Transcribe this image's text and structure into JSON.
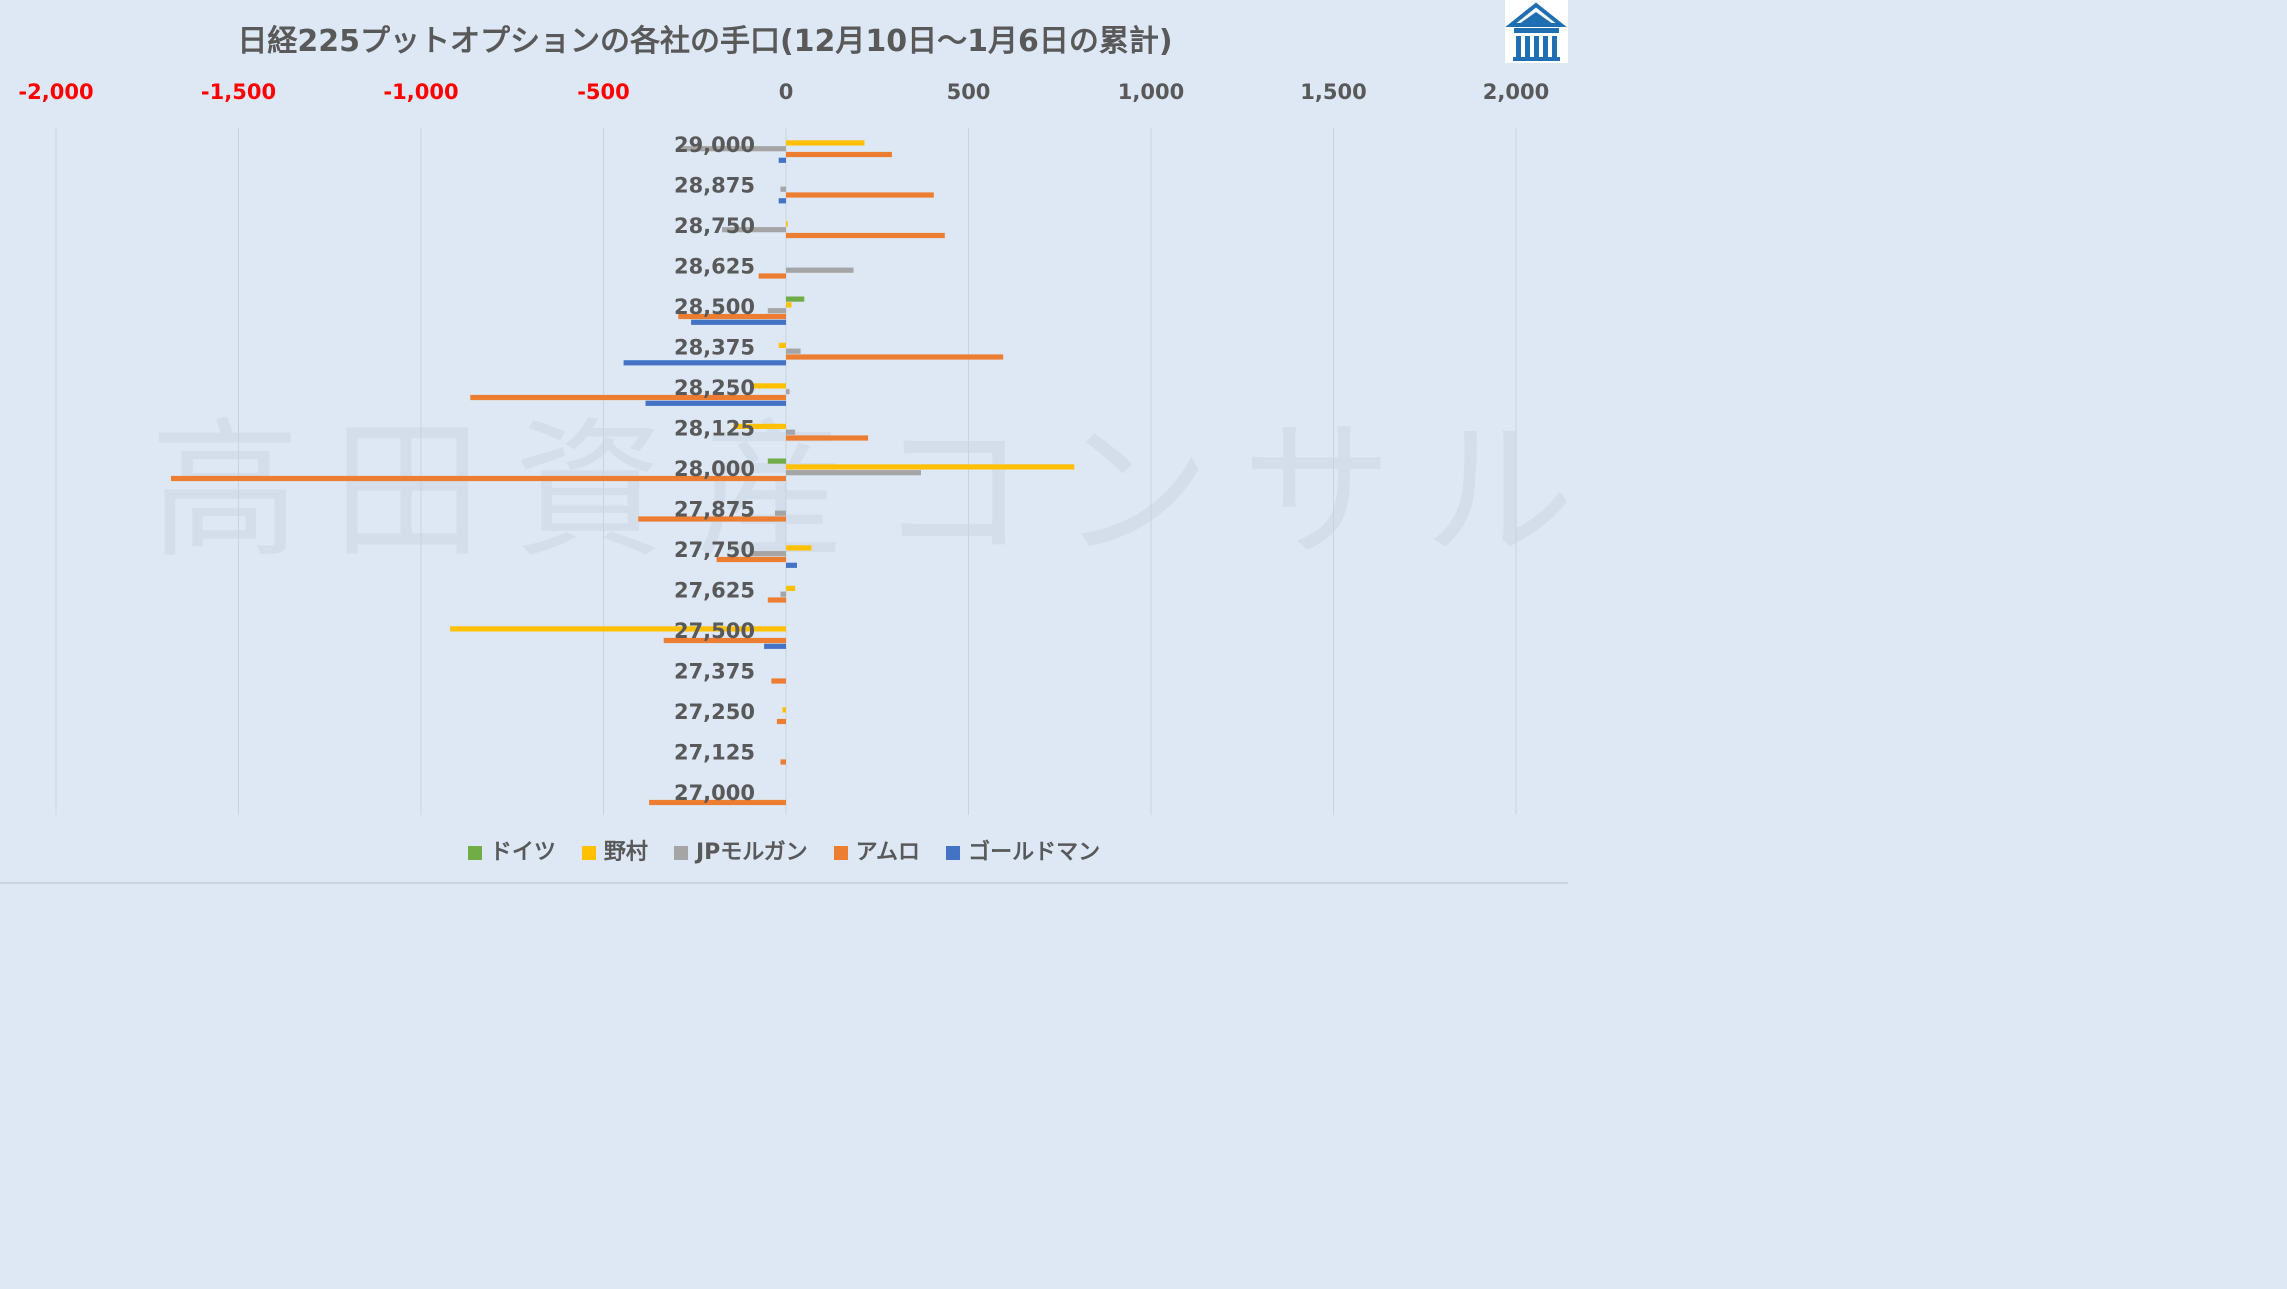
{
  "chart_data": {
    "type": "bar",
    "orientation": "horizontal",
    "title": "日経225プットオプションの各社の手口(12月10日～1月6日の累計)",
    "xlim": [
      -2000,
      2000
    ],
    "x_ticks": [
      -2000,
      -1500,
      -1000,
      -500,
      0,
      500,
      1000,
      1500,
      2000
    ],
    "x_tick_labels": [
      "-2,000",
      "-1,500",
      "-1,000",
      "-500",
      "0",
      "500",
      "1,000",
      "1,500",
      "2,000"
    ],
    "negative_tick_color": "#ff0000",
    "positive_tick_color": "#595959",
    "categories": [
      "29,000",
      "28,875",
      "28,750",
      "28,625",
      "28,500",
      "28,375",
      "28,250",
      "28,125",
      "28,000",
      "27,875",
      "27,750",
      "27,625",
      "27,500",
      "27,375",
      "27,250",
      "27,125",
      "27,000"
    ],
    "legend_position": "bottom",
    "grid": true,
    "series": [
      {
        "name": "ドイツ",
        "color": "#70ad47",
        "values": [
          0,
          0,
          0,
          0,
          50,
          0,
          0,
          0,
          -50,
          0,
          0,
          0,
          0,
          0,
          0,
          0,
          0
        ]
      },
      {
        "name": "野村",
        "color": "#ffc000",
        "values": [
          215,
          0,
          5,
          0,
          15,
          -20,
          -90,
          -145,
          790,
          0,
          70,
          25,
          -920,
          0,
          -10,
          0,
          0
        ]
      },
      {
        "name": "JPモルガン",
        "color": "#a5a5a5",
        "values": [
          -290,
          -15,
          -175,
          185,
          -50,
          40,
          10,
          25,
          370,
          -30,
          -95,
          -15,
          0,
          0,
          0,
          0,
          0
        ]
      },
      {
        "name": "アムロ",
        "color": "#ed7d31",
        "values": [
          290,
          405,
          435,
          -75,
          -295,
          595,
          -865,
          225,
          -1685,
          -405,
          -190,
          -50,
          -335,
          -40,
          -25,
          -15,
          -375
        ]
      },
      {
        "name": "ゴールドマン",
        "color": "#4472c4",
        "values": [
          -20,
          -20,
          0,
          0,
          -260,
          -445,
          -385,
          0,
          0,
          0,
          30,
          0,
          -60,
          0,
          0,
          0,
          0
        ]
      }
    ]
  },
  "watermark": "高田資産コンサル",
  "logo_icon": "house-logo-icon",
  "background_color": "#dde8f4"
}
